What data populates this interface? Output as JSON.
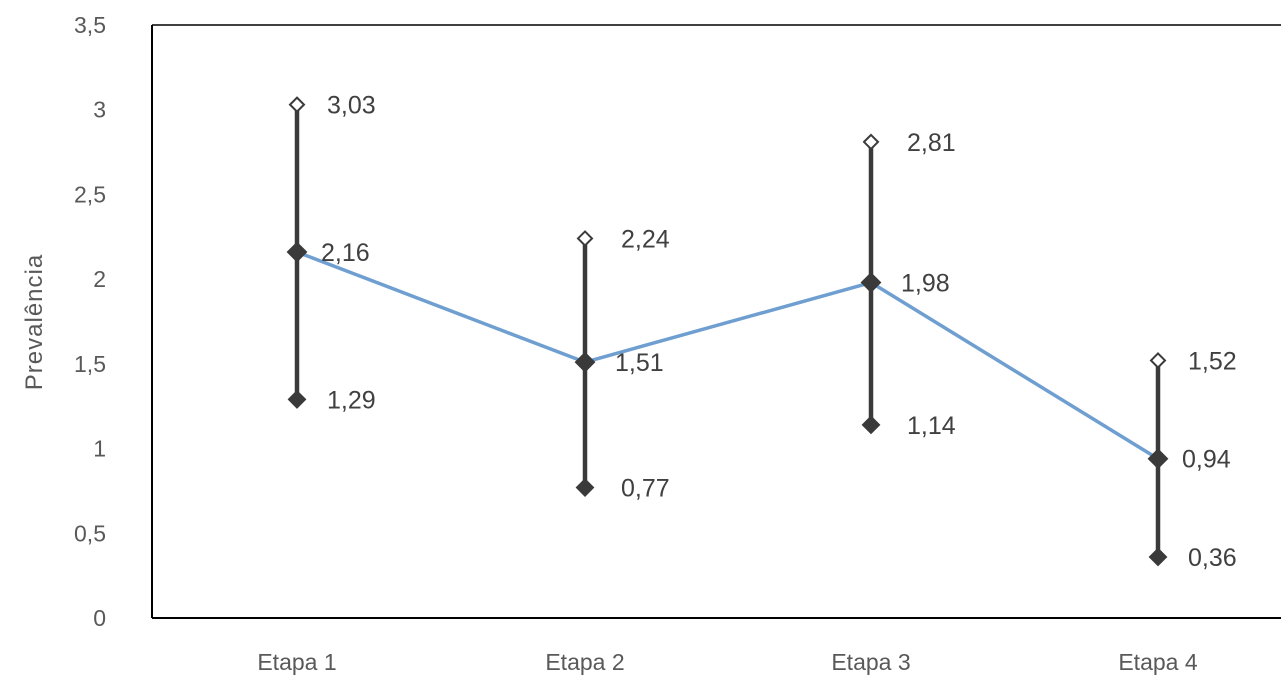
{
  "chart_data": {
    "type": "line",
    "title": "",
    "xlabel": "",
    "ylabel": "Prevalência",
    "ylim": [
      0,
      3.5
    ],
    "y_ticks": [
      "0",
      "0,5",
      "1",
      "1,5",
      "2",
      "2,5",
      "3",
      "3,5"
    ],
    "y_tick_values": [
      0,
      0.5,
      1,
      1.5,
      2,
      2.5,
      3,
      3.5
    ],
    "categories": [
      "Etapa 1",
      "Etapa 2",
      "Etapa 3",
      "Etapa 4"
    ],
    "series": [
      {
        "role": "estimate",
        "values": [
          2.16,
          1.51,
          1.98,
          0.94
        ],
        "labels": [
          "2,16",
          "1,51",
          "1,98",
          "0,94"
        ]
      },
      {
        "role": "upper",
        "values": [
          3.03,
          2.24,
          2.81,
          1.52
        ],
        "labels": [
          "3,03",
          "2,24",
          "2,81",
          "1,52"
        ]
      },
      {
        "role": "lower",
        "values": [
          1.29,
          0.77,
          1.14,
          0.36
        ],
        "labels": [
          "1,29",
          "0,77",
          "1,14",
          "0,36"
        ]
      }
    ],
    "grid": false,
    "legend": "none",
    "colors": {
      "line": "#6f9fd0",
      "error_bar": "#3a3a3a",
      "marker": "#3a3a3a",
      "axis": "#000000",
      "text": "#595959"
    }
  }
}
